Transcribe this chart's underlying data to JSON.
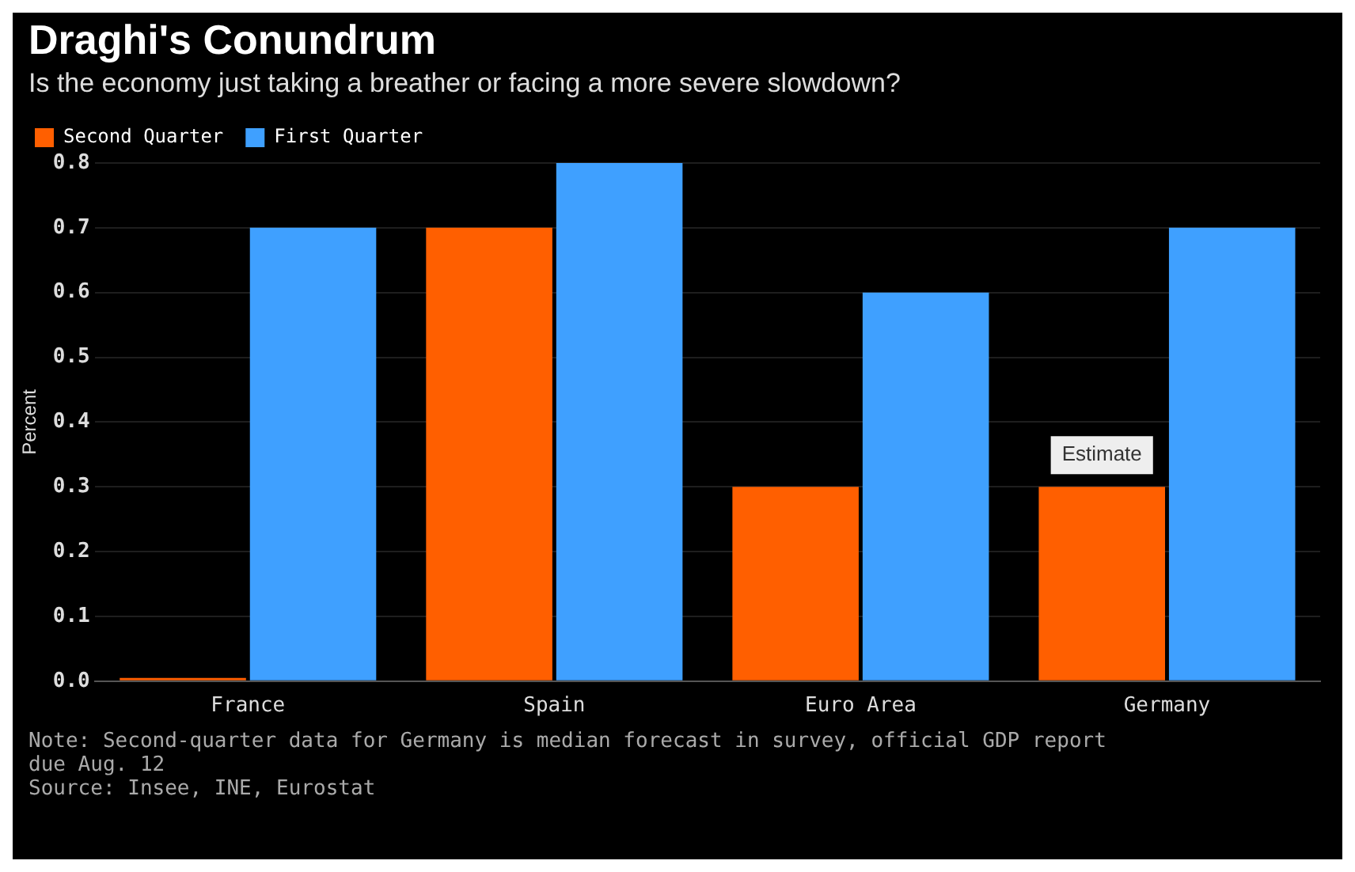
{
  "chart_data": {
    "type": "bar",
    "title": "Draghi's Conundrum",
    "subtitle": "Is the economy just taking a breather or facing a more severe slowdown?",
    "ylabel": "Percent",
    "categories": [
      "France",
      "Spain",
      "Euro Area",
      "Germany"
    ],
    "series": [
      {
        "name": "Second Quarter",
        "color": "#ff5f00",
        "values": [
          0.0,
          0.7,
          0.3,
          0.3
        ]
      },
      {
        "name": "First Quarter",
        "color": "#3fa0ff",
        "values": [
          0.7,
          0.8,
          0.6,
          0.7
        ]
      }
    ],
    "ylim": [
      0,
      0.8
    ],
    "yticks": [
      {
        "value": 0,
        "label": "0.0"
      },
      {
        "value": 0.1,
        "label": "0.1"
      },
      {
        "value": 0.2,
        "label": "0.2"
      },
      {
        "value": 0.3,
        "label": "0.3"
      },
      {
        "value": 0.4,
        "label": "0.4"
      },
      {
        "value": 0.5,
        "label": "0.5"
      },
      {
        "value": 0.6,
        "label": "0.6"
      },
      {
        "value": 0.7,
        "label": "0.7"
      },
      {
        "value": 0.8,
        "label": "0.8"
      }
    ],
    "grid": "y",
    "legend": "top left",
    "annotations": [
      {
        "text": "Estimate",
        "x": "Germany",
        "y": 0.3
      },
      "Note: Second-quarter data for Germany is median forecast in survey, official GDP report due Aug. 12",
      "Source: Insee, INE, Eurostat"
    ]
  }
}
